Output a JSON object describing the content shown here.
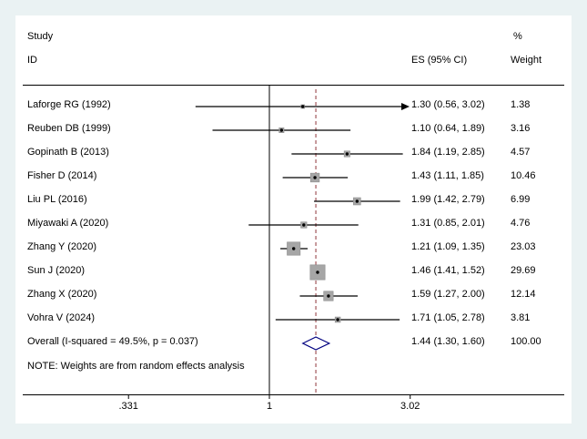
{
  "header": {
    "study": "Study",
    "id": "ID",
    "percent": "%",
    "weight": "Weight",
    "es_ci": "ES (95% CI)"
  },
  "note": "NOTE: Weights are from random effects analysis",
  "chart_data": {
    "type": "forest",
    "x_scale": "log",
    "axis": {
      "min": 0.331,
      "max": 3.02,
      "null_line": 1,
      "ticks": [
        {
          "label": ".331",
          "value": 0.331
        },
        {
          "label": "1",
          "value": 1
        },
        {
          "label": "3.02",
          "value": 3.02
        }
      ]
    },
    "studies": [
      {
        "id": "Laforge RG (1992)",
        "es": 1.3,
        "lo": 0.56,
        "hi": 3.02,
        "weight": 1.38,
        "es_ci": "1.30 (0.56, 3.02)",
        "weight_label": "1.38",
        "clipped": true
      },
      {
        "id": "Reuben DB (1999)",
        "es": 1.1,
        "lo": 0.64,
        "hi": 1.89,
        "weight": 3.16,
        "es_ci": "1.10 (0.64, 1.89)",
        "weight_label": "3.16",
        "clipped": false
      },
      {
        "id": "Gopinath B (2013)",
        "es": 1.84,
        "lo": 1.19,
        "hi": 2.85,
        "weight": 4.57,
        "es_ci": "1.84 (1.19, 2.85)",
        "weight_label": "4.57",
        "clipped": false
      },
      {
        "id": "Fisher D (2014)",
        "es": 1.43,
        "lo": 1.11,
        "hi": 1.85,
        "weight": 10.46,
        "es_ci": "1.43 (1.11, 1.85)",
        "weight_label": "10.46",
        "clipped": false
      },
      {
        "id": "Liu PL (2016)",
        "es": 1.99,
        "lo": 1.42,
        "hi": 2.79,
        "weight": 6.99,
        "es_ci": "1.99 (1.42, 2.79)",
        "weight_label": "6.99",
        "clipped": false
      },
      {
        "id": "Miyawaki A (2020)",
        "es": 1.31,
        "lo": 0.85,
        "hi": 2.01,
        "weight": 4.76,
        "es_ci": "1.31 (0.85, 2.01)",
        "weight_label": "4.76",
        "clipped": false
      },
      {
        "id": "Zhang Y (2020)",
        "es": 1.21,
        "lo": 1.09,
        "hi": 1.35,
        "weight": 23.03,
        "es_ci": "1.21 (1.09, 1.35)",
        "weight_label": "23.03",
        "clipped": false
      },
      {
        "id": "Sun J (2020)",
        "es": 1.46,
        "lo": 1.41,
        "hi": 1.52,
        "weight": 29.69,
        "es_ci": "1.46 (1.41, 1.52)",
        "weight_label": "29.69",
        "clipped": false
      },
      {
        "id": "Zhang X (2020)",
        "es": 1.59,
        "lo": 1.27,
        "hi": 2.0,
        "weight": 12.14,
        "es_ci": "1.59 (1.27, 2.00)",
        "weight_label": "12.14",
        "clipped": false
      },
      {
        "id": "Vohra V (2024)",
        "es": 1.71,
        "lo": 1.05,
        "hi": 2.78,
        "weight": 3.81,
        "es_ci": "1.71 (1.05, 2.78)",
        "weight_label": "3.81",
        "clipped": false
      }
    ],
    "overall": {
      "id": "Overall  (I-squared = 49.5%, p = 0.037)",
      "es": 1.44,
      "lo": 1.3,
      "hi": 1.6,
      "es_ci": "1.44 (1.30, 1.60)",
      "weight_label": "100.00"
    }
  },
  "colors": {
    "background": "#eaf2f3",
    "panel": "#ffffff",
    "line": "#000000",
    "square_fill": "#a6a6a6",
    "square_stroke": "#8c8c8c",
    "diamond_stroke": "#000080",
    "overall_line": "#90353b"
  }
}
